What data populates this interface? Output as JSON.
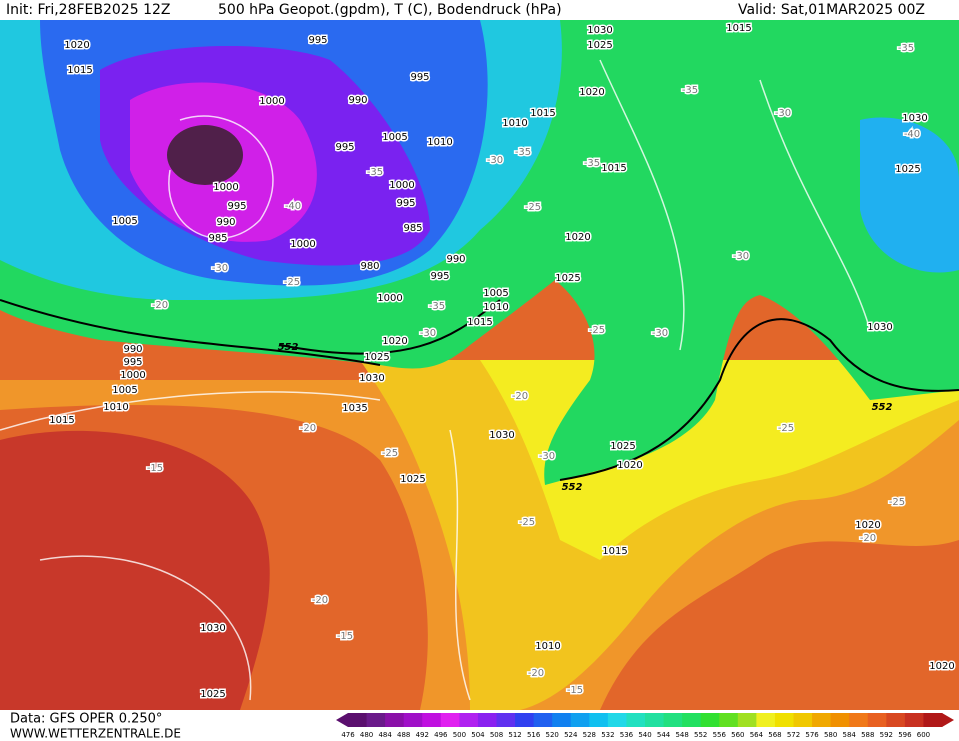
{
  "header": {
    "init": "Init: Fri,28FEB2025 12Z",
    "title": "500 hPa Geopot.(gpdm), T (C), Bodendruck (hPa)",
    "valid": "Valid: Sat,01MAR2025 00Z"
  },
  "footer": {
    "data": "Data: GFS OPER 0.250°",
    "site": "WWW.WETTERZENTRALE.DE"
  },
  "colorbar": {
    "values": [
      476,
      480,
      484,
      488,
      492,
      496,
      500,
      504,
      508,
      512,
      516,
      520,
      524,
      528,
      532,
      536,
      540,
      544,
      548,
      552,
      556,
      560,
      564,
      568,
      572,
      576,
      580,
      584,
      588,
      592,
      596,
      600
    ],
    "colors": [
      "#5a0f6e",
      "#6a1a8a",
      "#8a10a8",
      "#a010c8",
      "#c010e0",
      "#e020f0",
      "#b020f0",
      "#8a20f0",
      "#6030f0",
      "#3040f0",
      "#2060f0",
      "#1080f0",
      "#10a0f0",
      "#10c0f0",
      "#20d8e8",
      "#20e0c0",
      "#20e0a0",
      "#20e080",
      "#20e060",
      "#30e030",
      "#60e020",
      "#a0e020",
      "#f0f020",
      "#f0e000",
      "#f0c800",
      "#f0a800",
      "#f09000",
      "#f07818",
      "#e86020",
      "#d84820",
      "#c83020",
      "#b01818"
    ]
  },
  "map": {
    "pressure_labels": [
      "1020",
      "1015",
      "995",
      "995",
      "1000",
      "990",
      "1005",
      "1010",
      "1010",
      "1015",
      "995",
      "1000",
      "1000",
      "995",
      "990",
      "985",
      "1005",
      "1000",
      "995",
      "985",
      "980",
      "990",
      "995",
      "1000",
      "1005",
      "1010",
      "1015",
      "1020",
      "1025",
      "1030",
      "1035",
      "990",
      "995",
      "1000",
      "1005",
      "1010",
      "1015",
      "1030",
      "1025",
      "1015",
      "1020",
      "1015",
      "1020",
      "1025",
      "1030",
      "1025",
      "1030",
      "1030",
      "1025",
      "1025",
      "1020",
      "1015",
      "1020",
      "1010",
      "1030",
      "1025",
      "1020"
    ],
    "temperature_labels": [
      "-30",
      "-35",
      "-35",
      "-40",
      "-30",
      "-25",
      "-20",
      "-35",
      "-30",
      "-35",
      "-25",
      "-35",
      "-30",
      "-35",
      "-40",
      "-30",
      "-30",
      "-25",
      "-20",
      "-30",
      "-25",
      "-20",
      "-15",
      "-25",
      "-25",
      "-25",
      "-20",
      "-20",
      "-15",
      "-20",
      "-15"
    ],
    "contour_labels": [
      "552",
      "552",
      "552"
    ]
  }
}
